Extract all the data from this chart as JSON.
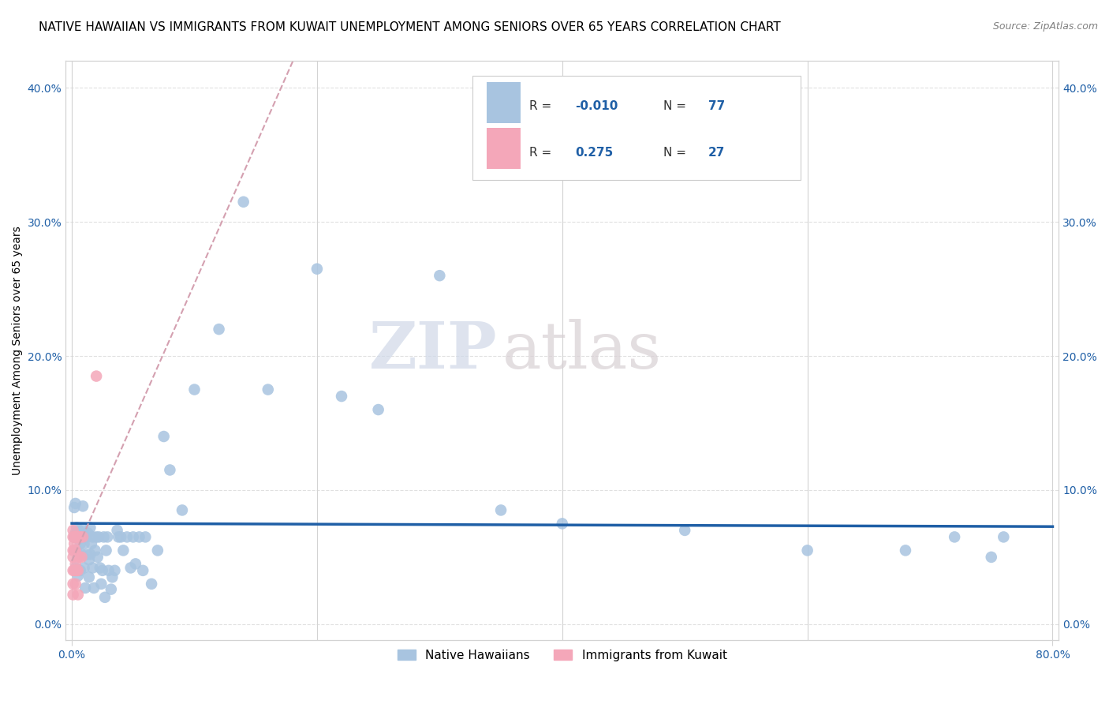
{
  "title": "NATIVE HAWAIIAN VS IMMIGRANTS FROM KUWAIT UNEMPLOYMENT AMONG SENIORS OVER 65 YEARS CORRELATION CHART",
  "source": "Source: ZipAtlas.com",
  "ylabel": "Unemployment Among Seniors over 65 years",
  "xlim": [
    0.0,
    0.8
  ],
  "ylim": [
    0.0,
    0.42
  ],
  "x_ticks_left": [
    0.0
  ],
  "x_ticks_right": [
    0.8
  ],
  "x_tick_label_left": "0.0%",
  "x_tick_label_right": "80.0%",
  "y_ticks": [
    0.0,
    0.1,
    0.2,
    0.3,
    0.4
  ],
  "y_tick_labels": [
    "0.0%",
    "10.0%",
    "20.0%",
    "30.0%",
    "40.0%"
  ],
  "legend_labels": [
    "Native Hawaiians",
    "Immigrants from Kuwait"
  ],
  "blue_color": "#a8c4e0",
  "pink_color": "#f4a7b9",
  "blue_line_color": "#1f5fa6",
  "pink_line_color": "#d4a0b0",
  "R_blue": -0.01,
  "N_blue": 77,
  "R_pink": 0.275,
  "N_pink": 27,
  "blue_x": [
    0.002,
    0.002,
    0.003,
    0.003,
    0.003,
    0.004,
    0.004,
    0.005,
    0.005,
    0.006,
    0.007,
    0.007,
    0.008,
    0.008,
    0.009,
    0.009,
    0.01,
    0.01,
    0.011,
    0.012,
    0.012,
    0.013,
    0.014,
    0.014,
    0.015,
    0.015,
    0.016,
    0.017,
    0.017,
    0.018,
    0.019,
    0.02,
    0.021,
    0.022,
    0.023,
    0.024,
    0.025,
    0.026,
    0.027,
    0.028,
    0.029,
    0.03,
    0.032,
    0.033,
    0.035,
    0.037,
    0.038,
    0.04,
    0.042,
    0.045,
    0.048,
    0.05,
    0.052,
    0.055,
    0.058,
    0.06,
    0.065,
    0.07,
    0.075,
    0.08,
    0.09,
    0.1,
    0.12,
    0.14,
    0.16,
    0.2,
    0.22,
    0.25,
    0.3,
    0.35,
    0.4,
    0.5,
    0.6,
    0.68,
    0.72,
    0.75,
    0.76
  ],
  "blue_y": [
    0.087,
    0.065,
    0.09,
    0.068,
    0.042,
    0.072,
    0.055,
    0.068,
    0.036,
    0.07,
    0.06,
    0.04,
    0.066,
    0.052,
    0.088,
    0.07,
    0.06,
    0.042,
    0.027,
    0.065,
    0.052,
    0.068,
    0.048,
    0.035,
    0.072,
    0.052,
    0.06,
    0.065,
    0.042,
    0.027,
    0.055,
    0.065,
    0.05,
    0.065,
    0.042,
    0.03,
    0.04,
    0.065,
    0.02,
    0.055,
    0.065,
    0.04,
    0.026,
    0.035,
    0.04,
    0.07,
    0.065,
    0.065,
    0.055,
    0.065,
    0.042,
    0.065,
    0.045,
    0.065,
    0.04,
    0.065,
    0.03,
    0.055,
    0.14,
    0.115,
    0.085,
    0.175,
    0.22,
    0.315,
    0.175,
    0.265,
    0.17,
    0.16,
    0.26,
    0.085,
    0.075,
    0.07,
    0.055,
    0.055,
    0.065,
    0.05,
    0.065
  ],
  "pink_x": [
    0.001,
    0.001,
    0.001,
    0.001,
    0.001,
    0.001,
    0.001,
    0.002,
    0.002,
    0.002,
    0.002,
    0.003,
    0.003,
    0.003,
    0.003,
    0.003,
    0.004,
    0.004,
    0.005,
    0.005,
    0.005,
    0.006,
    0.006,
    0.007,
    0.008,
    0.009,
    0.02
  ],
  "pink_y": [
    0.07,
    0.065,
    0.055,
    0.05,
    0.04,
    0.03,
    0.022,
    0.065,
    0.06,
    0.055,
    0.04,
    0.065,
    0.055,
    0.045,
    0.04,
    0.03,
    0.065,
    0.04,
    0.065,
    0.04,
    0.022,
    0.065,
    0.05,
    0.065,
    0.05,
    0.065,
    0.185
  ],
  "watermark_zip": "ZIP",
  "watermark_atlas": "atlas",
  "marker_size": 110,
  "title_fontsize": 11,
  "axis_label_fontsize": 10,
  "tick_fontsize": 10,
  "legend_fontsize": 11
}
